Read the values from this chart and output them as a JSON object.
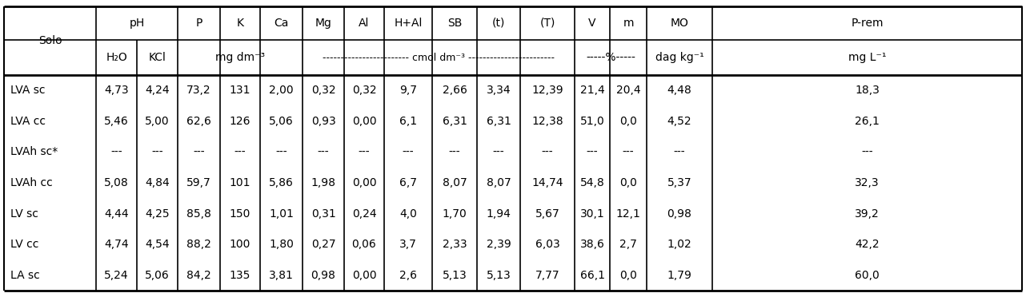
{
  "rows": [
    [
      "LVA sc",
      "4,73",
      "4,24",
      "73,2",
      "131",
      "2,00",
      "0,32",
      "0,32",
      "9,7",
      "2,66",
      "3,34",
      "12,39",
      "21,4",
      "20,4",
      "4,48",
      "18,3"
    ],
    [
      "LVA cc",
      "5,46",
      "5,00",
      "62,6",
      "126",
      "5,06",
      "0,93",
      "0,00",
      "6,1",
      "6,31",
      "6,31",
      "12,38",
      "51,0",
      "0,0",
      "4,52",
      "26,1"
    ],
    [
      "LVAh sc*",
      "---",
      "---",
      "---",
      "---",
      "---",
      "---",
      "---",
      "---",
      "---",
      "---",
      "---",
      "---",
      "---",
      "---",
      "---"
    ],
    [
      "LVAh cc",
      "5,08",
      "4,84",
      "59,7",
      "101",
      "5,86",
      "1,98",
      "0,00",
      "6,7",
      "8,07",
      "8,07",
      "14,74",
      "54,8",
      "0,0",
      "5,37",
      "32,3"
    ],
    [
      "LV sc",
      "4,44",
      "4,25",
      "85,8",
      "150",
      "1,01",
      "0,31",
      "0,24",
      "4,0",
      "1,70",
      "1,94",
      "5,67",
      "30,1",
      "12,1",
      "0,98",
      "39,2"
    ],
    [
      "LV cc",
      "4,74",
      "4,54",
      "88,2",
      "100",
      "1,80",
      "0,27",
      "0,06",
      "3,7",
      "2,33",
      "2,39",
      "6,03",
      "38,6",
      "2,7",
      "1,02",
      "42,2"
    ],
    [
      "LA sc",
      "5,24",
      "5,06",
      "84,2",
      "135",
      "3,81",
      "0,98",
      "0,00",
      "2,6",
      "5,13",
      "5,13",
      "7,77",
      "66,1",
      "0,0",
      "1,79",
      "60,0"
    ]
  ],
  "bg_color": "#ffffff",
  "text_color": "#000000",
  "font_size": 10.0,
  "cmol_dashes": "------------------------ cmol⁣ dm⁻³ ------------------------"
}
